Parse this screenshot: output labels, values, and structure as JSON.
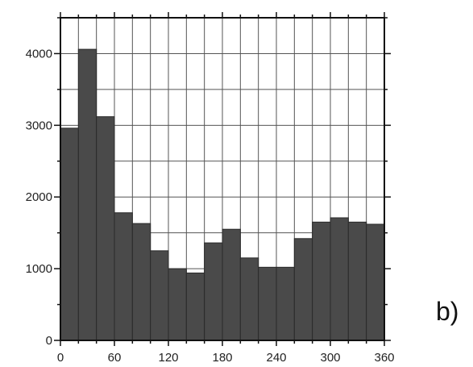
{
  "panel_label": "b)",
  "chart_data": {
    "type": "bar",
    "bin_width": 20,
    "bins": [
      0,
      20,
      40,
      60,
      80,
      100,
      120,
      140,
      160,
      180,
      200,
      220,
      240,
      260,
      280,
      300,
      320,
      340
    ],
    "values": [
      2960,
      4060,
      3120,
      1780,
      1630,
      1250,
      1000,
      940,
      1360,
      1550,
      1150,
      1020,
      1020,
      1420,
      1650,
      1710,
      1650,
      1620
    ],
    "xlim": [
      0,
      360
    ],
    "ylim": [
      0,
      4500
    ],
    "x_ticks": [
      0,
      60,
      120,
      180,
      240,
      300,
      360
    ],
    "y_ticks": [
      0,
      1000,
      2000,
      3000,
      4000
    ],
    "x_grid_step": 20,
    "y_grid_step": 500,
    "grid": true,
    "bar_color": "#4a4a4a",
    "title": "",
    "xlabel": "",
    "ylabel": ""
  }
}
